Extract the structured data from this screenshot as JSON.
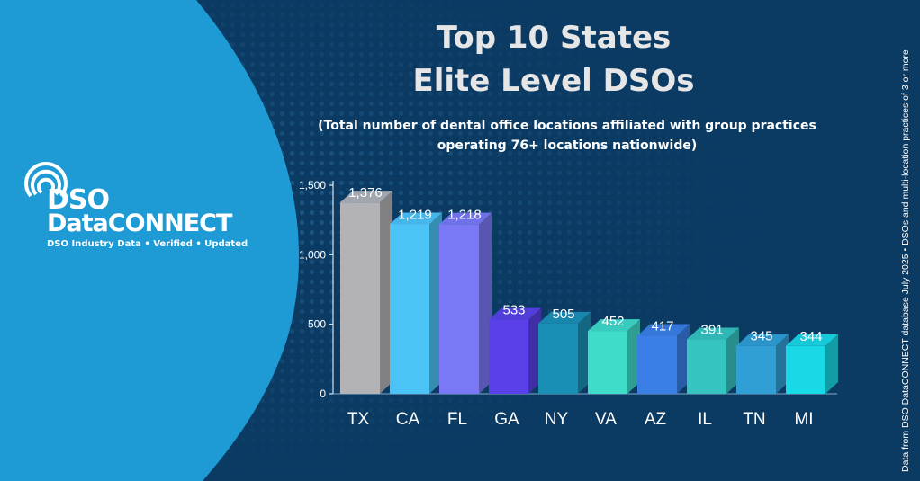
{
  "brand": {
    "line1": "DSO",
    "line2": "DataCONNECT",
    "tagline": "DSO Industry Data • Verified • Updated"
  },
  "footnote": "Data from DSO DataCONNECT database July 2025 • DSOs and multi-location practices of 3 or more",
  "colors": {
    "background": "#0b3a63",
    "left_panel": "#1e9ad4",
    "title": "#e6e6e6"
  },
  "chart_data": {
    "type": "bar",
    "title": "Top 10 States\nElite Level DSOs",
    "title_lines": [
      "Top 10 States",
      "Elite Level DSOs"
    ],
    "subtitle_lines": [
      "(Total number of dental office locations affiliated with group practices",
      "operating 76+ locations nationwide)"
    ],
    "categories": [
      "TX",
      "CA",
      "FL",
      "GA",
      "NY",
      "VA",
      "AZ",
      "IL",
      "TN",
      "MI"
    ],
    "values": [
      1376,
      1219,
      1218,
      533,
      505,
      452,
      417,
      391,
      345,
      344
    ],
    "value_labels": [
      "1,376",
      "1,219",
      "1,218",
      "533",
      "505",
      "452",
      "417",
      "391",
      "345",
      "344"
    ],
    "bar_colors": [
      "#b3b3b7",
      "#4cc3f7",
      "#7a78f5",
      "#5a40e8",
      "#1a8fb5",
      "#3fdcc9",
      "#3a7ee6",
      "#35c4bf",
      "#2f9fd6",
      "#19d9e6"
    ],
    "yticks": [
      0,
      500,
      1000,
      1500
    ],
    "ytick_labels": [
      "0",
      "500",
      "1,000",
      "1,500"
    ],
    "ylim": [
      0,
      1500
    ],
    "grid": false,
    "legend": "none",
    "style": "3d-columns"
  }
}
